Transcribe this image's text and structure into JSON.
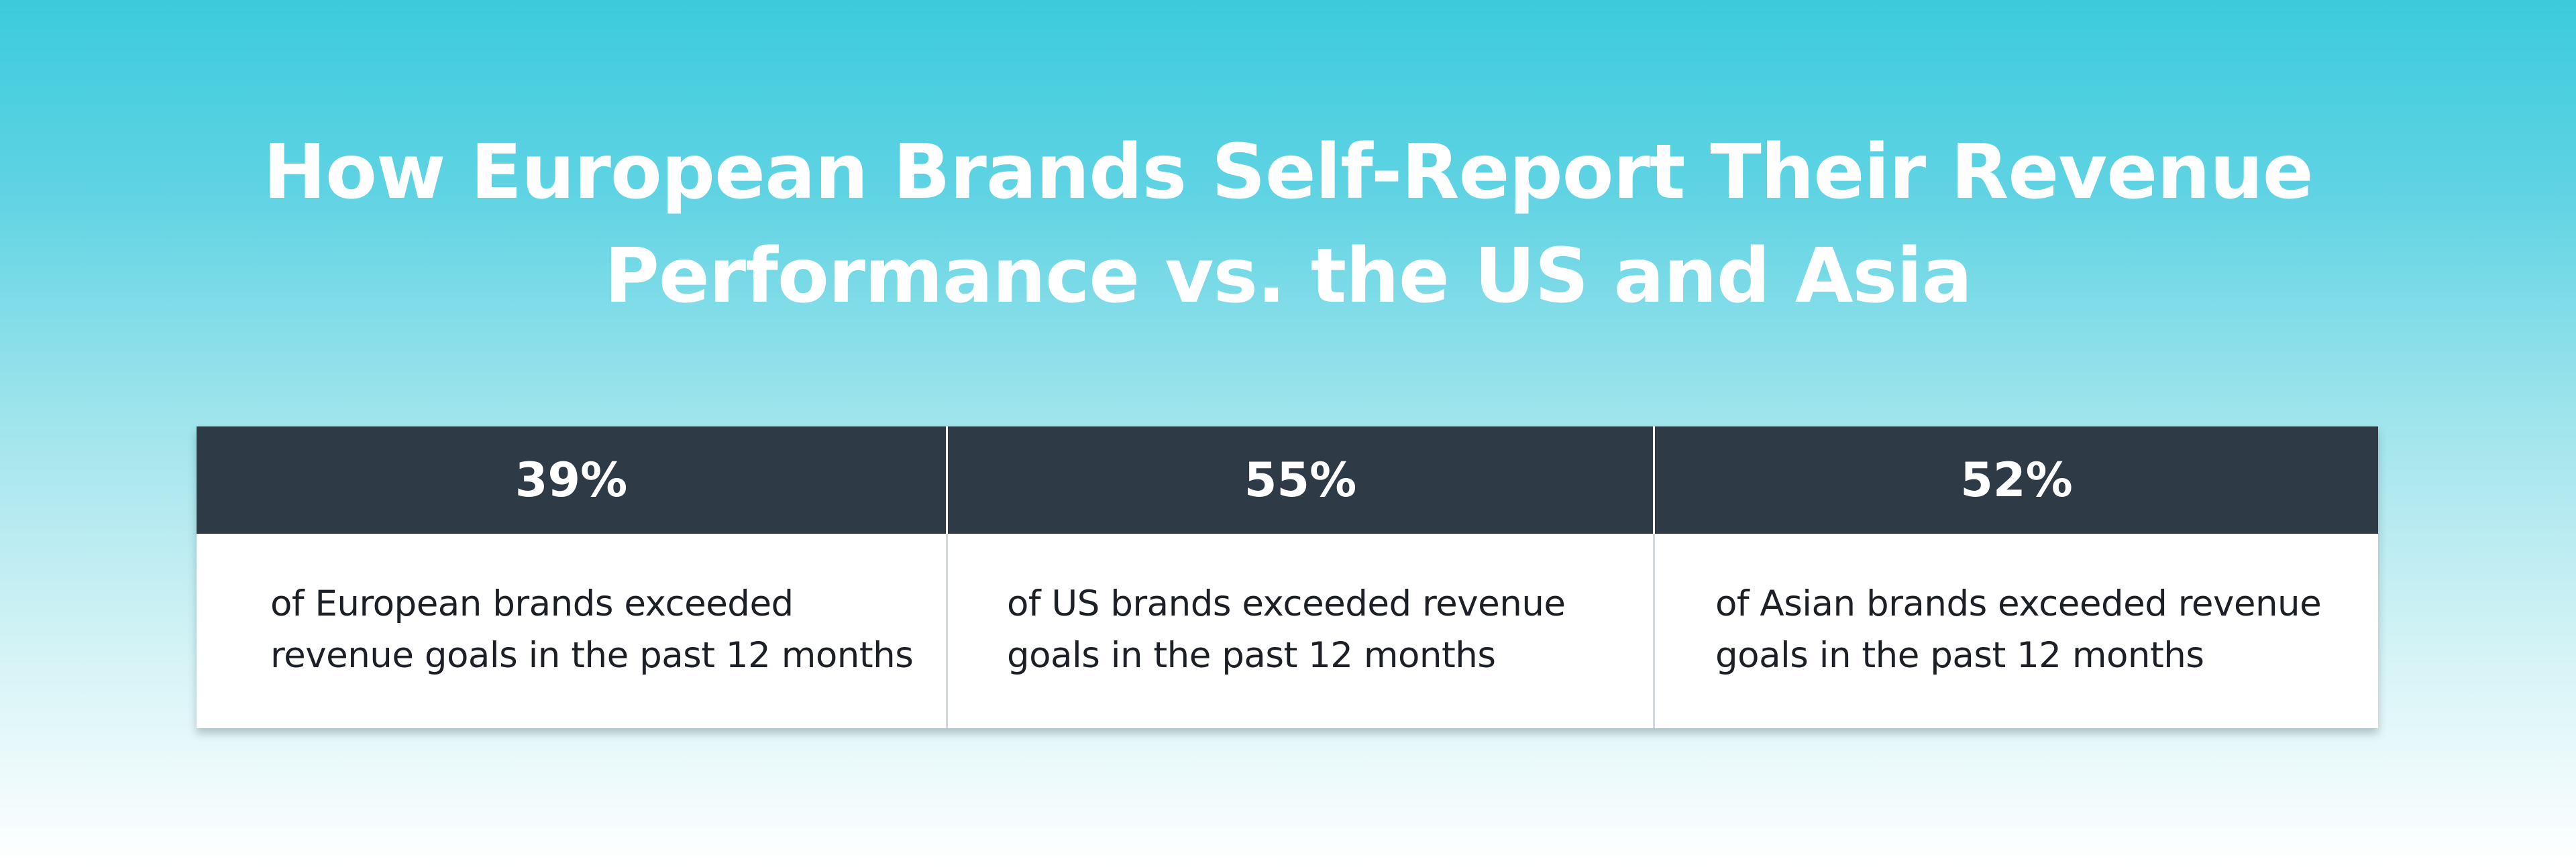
{
  "chart_data": {
    "type": "table",
    "title": "How European Brands Self-Report Their Revenue Performance vs. the US and Asia",
    "title_lines": [
      "How European Brands Self-Report Their Revenue",
      "Performance vs. the US and Asia"
    ],
    "stats": [
      {
        "value": "39%",
        "percent": 39,
        "description_lines": [
          "of European brands exceeded",
          "revenue goals in the past 12 months"
        ]
      },
      {
        "value": "55%",
        "percent": 55,
        "description_lines": [
          "of US brands exceeded revenue",
          "goals in the past 12 months"
        ]
      },
      {
        "value": "52%",
        "percent": 52,
        "description_lines": [
          "of Asian brands exceeded revenue",
          "goals in the past 12 months"
        ]
      }
    ]
  },
  "colors": {
    "gradient_top": "#3ccbdc",
    "gradient_bottom": "#ffffff",
    "header_background": "#2e3a46",
    "header_text": "#ffffff",
    "body_text": "#1c2026",
    "title_text": "#ffffff"
  }
}
